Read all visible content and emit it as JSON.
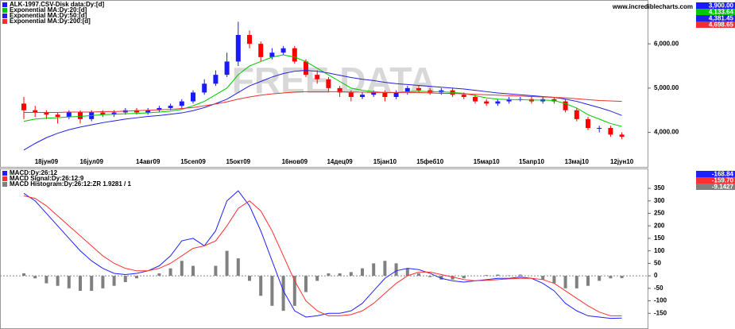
{
  "website": "www.incrediblecharts.com",
  "watermark": "FREE DATA",
  "chart_data": [
    {
      "type": "candlestick",
      "name": "ALK-1997.CSV-Disk data:Dy:[d]",
      "last_label": "3,900.00",
      "up_color": "#1a1aff",
      "down_color": "#ff0000",
      "categories": [
        null,
        null,
        "18јун09",
        null,
        null,
        null,
        "16јул09",
        null,
        null,
        null,
        null,
        "14авг09",
        null,
        null,
        null,
        "15сеп09",
        null,
        null,
        null,
        "15окт09",
        null,
        null,
        null,
        null,
        "16нов09",
        null,
        null,
        null,
        "14дец09",
        null,
        null,
        null,
        "15јан10",
        null,
        null,
        null,
        "15феб10",
        null,
        null,
        null,
        null,
        "15мар10",
        null,
        null,
        null,
        "15апр10",
        null,
        null,
        null,
        "13мај10",
        null,
        null,
        null,
        "12јун10"
      ],
      "open": [
        4650,
        4500,
        4450,
        4400,
        4350,
        4450,
        4300,
        4450,
        4400,
        4450,
        4500,
        4450,
        4500,
        4550,
        4600,
        4700,
        4900,
        5100,
        5300,
        5600,
        6200,
        6000,
        5700,
        5800,
        5900,
        5600,
        5300,
        5200,
        5000,
        4900,
        4800,
        4850,
        4900,
        4800,
        4900,
        5000,
        4950,
        4900,
        4950,
        4850,
        4800,
        4700,
        4650,
        4700,
        4750,
        4750,
        4700,
        4750,
        4700,
        4500,
        4300,
        4100,
        4100,
        3950
      ],
      "high": [
        4800,
        4600,
        4500,
        4450,
        4500,
        4500,
        4500,
        4500,
        4500,
        4550,
        4550,
        4550,
        4600,
        4650,
        4750,
        4950,
        5200,
        5400,
        5800,
        6500,
        6300,
        6050,
        5900,
        5950,
        5950,
        5650,
        5400,
        5250,
        5050,
        4950,
        4900,
        4950,
        4950,
        4950,
        5050,
        5050,
        5000,
        5000,
        5000,
        4900,
        4850,
        4750,
        4750,
        4800,
        4800,
        4800,
        4800,
        4800,
        4750,
        4550,
        4350,
        4150,
        4150,
        4000
      ],
      "low": [
        4300,
        4350,
        4300,
        4200,
        4300,
        4200,
        4250,
        4350,
        4350,
        4400,
        4400,
        4400,
        4450,
        4500,
        4550,
        4650,
        4850,
        5050,
        5250,
        5500,
        5900,
        5600,
        5650,
        5750,
        5550,
        5250,
        5100,
        4900,
        4800,
        4700,
        4750,
        4800,
        4700,
        4750,
        4850,
        4900,
        4850,
        4850,
        4800,
        4750,
        4650,
        4600,
        4600,
        4650,
        4700,
        4650,
        4650,
        4650,
        4450,
        4250,
        4050,
        4000,
        3900,
        3850
      ],
      "close": [
        4500,
        4450,
        4400,
        4350,
        4450,
        4300,
        4450,
        4400,
        4450,
        4500,
        4450,
        4500,
        4550,
        4600,
        4700,
        4900,
        5100,
        5300,
        5600,
        6200,
        6000,
        5700,
        5800,
        5900,
        5600,
        5300,
        5200,
        5000,
        4900,
        4800,
        4850,
        4900,
        4800,
        4900,
        5000,
        4950,
        4900,
        4950,
        4850,
        4800,
        4700,
        4650,
        4700,
        4750,
        4750,
        4700,
        4750,
        4700,
        4500,
        4300,
        4100,
        4100,
        3950,
        3900
      ],
      "series": [
        {
          "name": "Exponential MA:Dy:20:[d]",
          "color": "#00c800",
          "last_label": "4,133.64",
          "values": [
            4250,
            4300,
            4320,
            4330,
            4350,
            4360,
            4380,
            4400,
            4410,
            4420,
            4430,
            4440,
            4460,
            4480,
            4520,
            4600,
            4700,
            4850,
            5000,
            5300,
            5500,
            5600,
            5700,
            5750,
            5700,
            5600,
            5450,
            5300,
            5150,
            5000,
            4950,
            4920,
            4900,
            4900,
            4920,
            4930,
            4920,
            4920,
            4900,
            4880,
            4830,
            4780,
            4750,
            4740,
            4740,
            4730,
            4730,
            4720,
            4650,
            4550,
            4400,
            4300,
            4200,
            4133.64
          ]
        },
        {
          "name": "Exponential MA:Dy:50:[d]",
          "color": "#2020e0",
          "last_label": "4,381.45",
          "values": [
            3600,
            3750,
            3880,
            3980,
            4060,
            4120,
            4170,
            4220,
            4260,
            4300,
            4330,
            4360,
            4380,
            4410,
            4440,
            4490,
            4560,
            4650,
            4750,
            4900,
            5050,
            5150,
            5250,
            5330,
            5380,
            5400,
            5380,
            5340,
            5290,
            5240,
            5200,
            5170,
            5130,
            5100,
            5080,
            5060,
            5040,
            5020,
            5000,
            4980,
            4950,
            4920,
            4890,
            4870,
            4850,
            4830,
            4810,
            4790,
            4750,
            4700,
            4630,
            4560,
            4480,
            4381.45
          ]
        },
        {
          "name": "Exponential MA:Dy:200:[d]",
          "color": "#f03030",
          "last_label": "4,698.65",
          "values": [
            4450,
            4450,
            4450,
            4450,
            4460,
            4460,
            4460,
            4470,
            4470,
            4480,
            4490,
            4500,
            4510,
            4520,
            4540,
            4560,
            4600,
            4640,
            4690,
            4750,
            4800,
            4840,
            4870,
            4890,
            4910,
            4920,
            4920,
            4920,
            4920,
            4910,
            4910,
            4900,
            4900,
            4900,
            4900,
            4900,
            4890,
            4880,
            4880,
            4870,
            4860,
            4850,
            4840,
            4830,
            4820,
            4810,
            4800,
            4790,
            4780,
            4760,
            4740,
            4720,
            4710,
            4698.65
          ]
        }
      ],
      "ylim": [
        3400,
        6900
      ],
      "yticks": [
        {
          "value": 6000,
          "label": "6,000.00"
        },
        {
          "value": 5000,
          "label": "5,000.00"
        },
        {
          "value": 4000,
          "label": "4,000.00"
        }
      ]
    },
    {
      "type": "macd",
      "series": [
        {
          "name": "MACD:Dy:26:12",
          "color": "#2020ff",
          "kind": "line",
          "last_label": "-168.84",
          "values": [
            330,
            300,
            250,
            200,
            150,
            100,
            60,
            30,
            10,
            5,
            10,
            20,
            40,
            80,
            140,
            150,
            120,
            180,
            300,
            340,
            280,
            180,
            60,
            -60,
            -140,
            -165,
            -160,
            -150,
            -150,
            -140,
            -110,
            -60,
            -10,
            20,
            30,
            25,
            10,
            -10,
            -20,
            -25,
            -20,
            -15,
            -10,
            -10,
            -5,
            -10,
            -30,
            -60,
            -110,
            -140,
            -160,
            -165,
            -170,
            -168.84
          ]
        },
        {
          "name": "MACD Signal:Dy:26:12:9",
          "color": "#ff3030",
          "kind": "line",
          "last_label": "-159.70",
          "values": [
            320,
            310,
            280,
            240,
            200,
            160,
            120,
            80,
            50,
            30,
            20,
            20,
            30,
            50,
            80,
            110,
            120,
            140,
            200,
            270,
            300,
            260,
            180,
            80,
            -20,
            -100,
            -140,
            -160,
            -160,
            -155,
            -140,
            -110,
            -70,
            -30,
            0,
            15,
            15,
            5,
            -5,
            -15,
            -20,
            -18,
            -15,
            -12,
            -10,
            -10,
            -15,
            -30,
            -60,
            -90,
            -120,
            -145,
            -160,
            -159.7
          ]
        },
        {
          "name": "MACD Histogram:Dy:26:12:ZR 1.9281 / 1",
          "color": "#808080",
          "kind": "bar",
          "last_label": "-9.1427",
          "values": [
            10,
            -10,
            -30,
            -40,
            -50,
            -60,
            -60,
            -50,
            -40,
            -25,
            -10,
            0,
            10,
            30,
            60,
            40,
            0,
            40,
            100,
            70,
            -20,
            -80,
            -120,
            -140,
            -120,
            -65,
            -20,
            10,
            10,
            15,
            30,
            50,
            60,
            50,
            30,
            10,
            -5,
            -15,
            -15,
            -10,
            0,
            3,
            5,
            2,
            5,
            0,
            -15,
            -30,
            -50,
            -50,
            -40,
            -20,
            -10,
            -9.1427
          ]
        }
      ],
      "ylim": [
        -200,
        420
      ],
      "yticks": [
        350,
        300,
        250,
        200,
        150,
        100,
        50,
        0,
        -50,
        -100,
        -150
      ]
    }
  ]
}
